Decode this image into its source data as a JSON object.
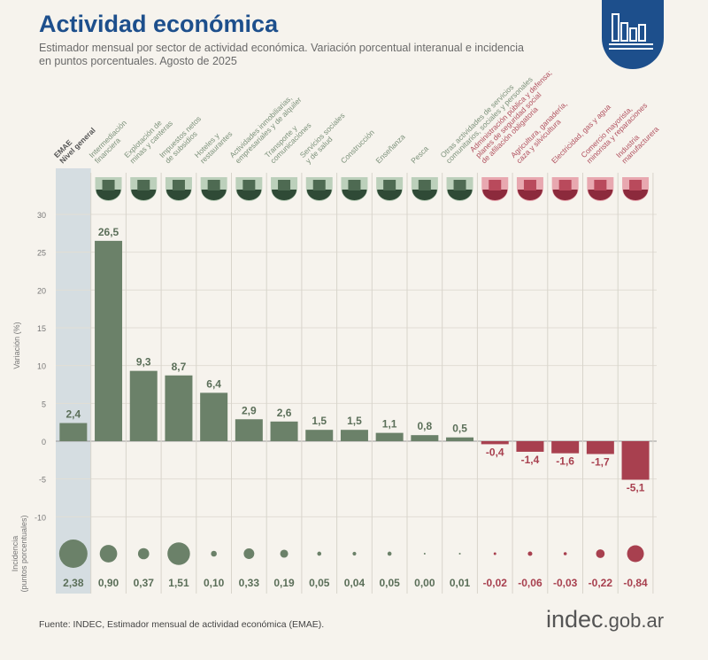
{
  "header": {
    "title": "Actividad económica",
    "subtitle": "Estimador mensual por sector de actividad económica. Variación porcentual interanual e incidencia en puntos porcentuales. Agosto de 2025"
  },
  "footer": {
    "source": "Fuente: INDEC, Estimador mensual de actividad económica (EMAE).",
    "logo_main": "indec",
    "logo_suffix": ".gob.ar"
  },
  "colors": {
    "positive": "#6b8169",
    "negative": "#a8404f",
    "highlight": "#c9d5dc",
    "title": "#1d4f8c"
  },
  "chart_data": {
    "type": "bar",
    "ylabel": "Variación (%)",
    "ylabel2": "Incidencia (puntos porcentuales)",
    "ylim": [
      -10,
      30
    ],
    "yticks": [
      30,
      25,
      20,
      15,
      10,
      5,
      0,
      -5,
      -10
    ],
    "grid": true,
    "categories": [
      [
        "EMAE",
        "Nivel general"
      ],
      [
        "Intermediación",
        "financiera"
      ],
      [
        "Explotación de",
        "minas y canteras"
      ],
      [
        "Impuestos netos",
        "de subsidios"
      ],
      [
        "Hoteles y",
        "restaurantes"
      ],
      [
        "Actividades inmobiliarias,",
        "empresariales y de alquiler"
      ],
      [
        "Transporte y",
        "comunicaciones"
      ],
      [
        "Servicios sociales",
        "y de salud"
      ],
      [
        "Construcción"
      ],
      [
        "Enseñanza"
      ],
      [
        "Pesca"
      ],
      [
        "Otras actividades de servicios",
        "comunitarios, sociales y personales"
      ],
      [
        "Administración pública y defensa;",
        "planes de seguridad social",
        "de afiliación obligatoria"
      ],
      [
        "Agricultura, ganadería,",
        "caza y silvicultura"
      ],
      [
        "Electricidad, gas y agua"
      ],
      [
        "Comercio mayorista,",
        "minorista y reparaciones"
      ],
      [
        "Industria",
        "manufacturera"
      ]
    ],
    "values": [
      2.4,
      26.5,
      9.3,
      8.7,
      6.4,
      2.9,
      2.6,
      1.5,
      1.5,
      1.1,
      0.8,
      0.5,
      -0.4,
      -1.4,
      -1.6,
      -1.7,
      -5.1
    ],
    "value_labels": [
      "2,4",
      "26,5",
      "9,3",
      "8,7",
      "6,4",
      "2,9",
      "2,6",
      "1,5",
      "1,5",
      "1,1",
      "0,8",
      "0,5",
      "-0,4",
      "-1,4",
      "-1,6",
      "-1,7",
      "-5,1"
    ],
    "incidence": [
      2.38,
      0.9,
      0.37,
      1.51,
      0.1,
      0.33,
      0.19,
      0.05,
      0.04,
      0.05,
      0.0,
      0.01,
      -0.02,
      -0.06,
      -0.03,
      -0.22,
      -0.84
    ],
    "incidence_labels": [
      "2,38",
      "0,90",
      "0,37",
      "1,51",
      "0,10",
      "0,33",
      "0,19",
      "0,05",
      "0,04",
      "0,05",
      "0,00",
      "0,01",
      "-0,02",
      "-0,06",
      "-0,03",
      "-0,22",
      "-0,84"
    ],
    "icons": [
      "",
      "bank-icon",
      "oil-pump-icon",
      "tax-icon",
      "hotel-icon",
      "real-estate-icon",
      "transport-icon",
      "health-icon",
      "construction-icon",
      "education-icon",
      "fishing-icon",
      "culture-icon",
      "government-icon",
      "livestock-icon",
      "tractor-icon",
      "commerce-icon",
      "gears-icon"
    ]
  }
}
